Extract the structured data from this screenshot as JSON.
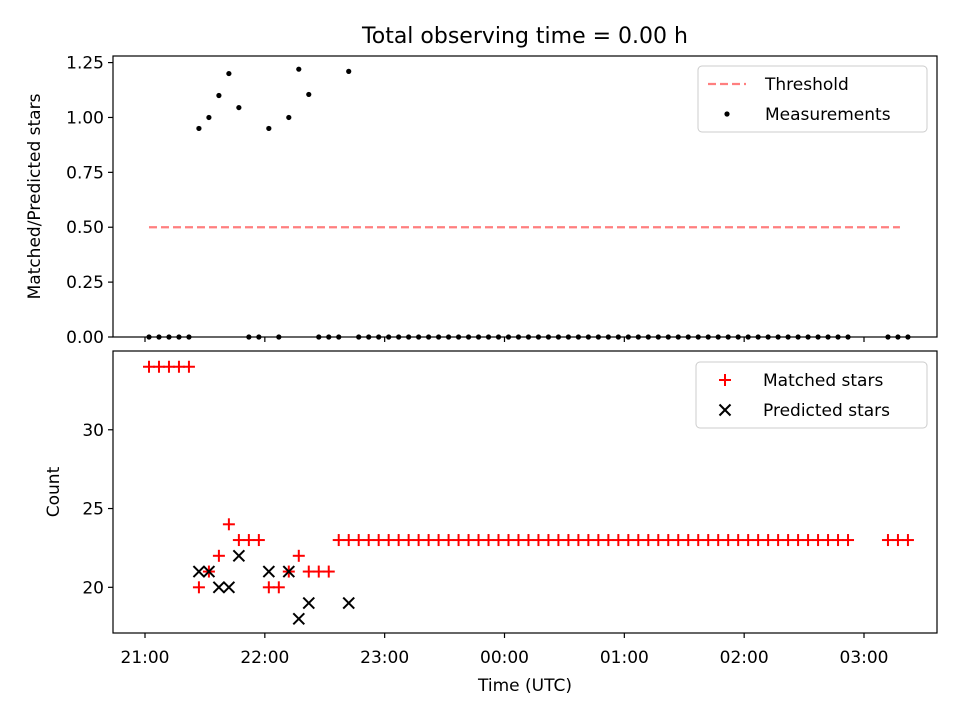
{
  "title": "Total observing time = 0.00 h",
  "chart_data": [
    {
      "type": "scatter",
      "panel": "top",
      "title": "Total observing time = 0.00 h",
      "xlabel": "",
      "ylabel": "Matched/Predicted stars",
      "ylim": [
        0,
        1.28
      ],
      "yticks": [
        0.0,
        0.25,
        0.5,
        0.75,
        1.0,
        1.25
      ],
      "ytick_labels": [
        "0.00",
        "0.25",
        "0.50",
        "0.75",
        "1.00",
        "1.25"
      ],
      "xticks": [
        "21:00",
        "22:00",
        "23:00",
        "00:00",
        "01:00",
        "02:00",
        "03:00"
      ],
      "legend_position": "top-right",
      "grid": false,
      "series": [
        {
          "name": "Threshold",
          "kind": "line",
          "style": "dashed",
          "color": "#ff7f7f",
          "x": [
            "21:02",
            "03:18"
          ],
          "y": [
            0.5,
            0.5
          ]
        },
        {
          "name": "Measurements",
          "kind": "scatter",
          "color": "#000000",
          "x": [
            "21:02",
            "21:07",
            "21:12",
            "21:17",
            "21:22",
            "21:27",
            "21:32",
            "21:37",
            "21:42",
            "21:47",
            "21:52",
            "21:57",
            "22:02",
            "22:07",
            "22:12",
            "22:17",
            "22:22",
            "22:27",
            "22:32",
            "22:37",
            "22:42",
            "22:47",
            "22:52",
            "22:57",
            "23:02",
            "23:07",
            "23:12",
            "23:17",
            "23:22",
            "23:27",
            "23:32",
            "23:37",
            "23:42",
            "23:47",
            "23:52",
            "23:57",
            "00:02",
            "00:07",
            "00:12",
            "00:17",
            "00:22",
            "00:27",
            "00:32",
            "00:37",
            "00:42",
            "00:47",
            "00:52",
            "00:57",
            "01:02",
            "01:07",
            "01:12",
            "01:17",
            "01:22",
            "01:27",
            "01:32",
            "01:37",
            "01:42",
            "01:47",
            "01:52",
            "01:57",
            "02:02",
            "02:07",
            "02:12",
            "02:17",
            "02:22",
            "02:27",
            "02:32",
            "02:37",
            "02:42",
            "02:47",
            "02:52",
            "03:12",
            "03:17",
            "03:22"
          ],
          "y": [
            0,
            0,
            0,
            0,
            0,
            0.95,
            1.0,
            1.1,
            1.2,
            1.045,
            0,
            0,
            0.95,
            0,
            1.0,
            1.22,
            1.105,
            0,
            0,
            0,
            1.21,
            0,
            0,
            0,
            0,
            0,
            0,
            0,
            0,
            0,
            0,
            0,
            0,
            0,
            0,
            0,
            0,
            0,
            0,
            0,
            0,
            0,
            0,
            0,
            0,
            0,
            0,
            0,
            0,
            0,
            0,
            0,
            0,
            0,
            0,
            0,
            0,
            0,
            0,
            0,
            0,
            0,
            0,
            0,
            0,
            0,
            0,
            0,
            0,
            0,
            0,
            0,
            0,
            0
          ]
        }
      ]
    },
    {
      "type": "scatter",
      "panel": "bottom",
      "xlabel": "Time (UTC)",
      "ylabel": "Count",
      "ylim": [
        17.1,
        35
      ],
      "yticks": [
        20,
        25,
        30
      ],
      "ytick_labels": [
        "20",
        "25",
        "30"
      ],
      "xticks": [
        "21:00",
        "22:00",
        "23:00",
        "00:00",
        "01:00",
        "02:00",
        "03:00"
      ],
      "legend_position": "top-right",
      "grid": false,
      "series": [
        {
          "name": "Matched stars",
          "marker": "+",
          "color": "#ff0000",
          "x": [
            "21:02",
            "21:07",
            "21:12",
            "21:17",
            "21:22",
            "21:27",
            "21:32",
            "21:37",
            "21:42",
            "21:47",
            "21:52",
            "21:57",
            "22:02",
            "22:07",
            "22:12",
            "22:17",
            "22:22",
            "22:27",
            "22:32",
            "22:37",
            "22:42",
            "22:47",
            "22:52",
            "22:57",
            "23:02",
            "23:07",
            "23:12",
            "23:17",
            "23:22",
            "23:27",
            "23:32",
            "23:37",
            "23:42",
            "23:47",
            "23:52",
            "23:57",
            "00:02",
            "00:07",
            "00:12",
            "00:17",
            "00:22",
            "00:27",
            "00:32",
            "00:37",
            "00:42",
            "00:47",
            "00:52",
            "00:57",
            "01:02",
            "01:07",
            "01:12",
            "01:17",
            "01:22",
            "01:27",
            "01:32",
            "01:37",
            "01:42",
            "01:47",
            "01:52",
            "01:57",
            "02:02",
            "02:07",
            "02:12",
            "02:17",
            "02:22",
            "02:27",
            "02:32",
            "02:37",
            "02:42",
            "02:47",
            "02:52",
            "03:12",
            "03:17",
            "03:22"
          ],
          "y": [
            34,
            34,
            34,
            34,
            34,
            20,
            21,
            22,
            24,
            23,
            23,
            23,
            20,
            20,
            21,
            22,
            21,
            21,
            21,
            23,
            23,
            23,
            23,
            23,
            23,
            23,
            23,
            23,
            23,
            23,
            23,
            23,
            23,
            23,
            23,
            23,
            23,
            23,
            23,
            23,
            23,
            23,
            23,
            23,
            23,
            23,
            23,
            23,
            23,
            23,
            23,
            23,
            23,
            23,
            23,
            23,
            23,
            23,
            23,
            23,
            23,
            23,
            23,
            23,
            23,
            23,
            23,
            23,
            23,
            23,
            23,
            23,
            23,
            23
          ]
        },
        {
          "name": "Predicted stars",
          "marker": "x",
          "color": "#000000",
          "x": [
            "21:27",
            "21:32",
            "21:37",
            "21:42",
            "21:47",
            "22:02",
            "22:12",
            "22:17",
            "22:22",
            "22:42"
          ],
          "y": [
            21,
            21,
            20,
            20,
            22,
            21,
            21,
            18,
            19,
            19
          ]
        }
      ]
    }
  ]
}
